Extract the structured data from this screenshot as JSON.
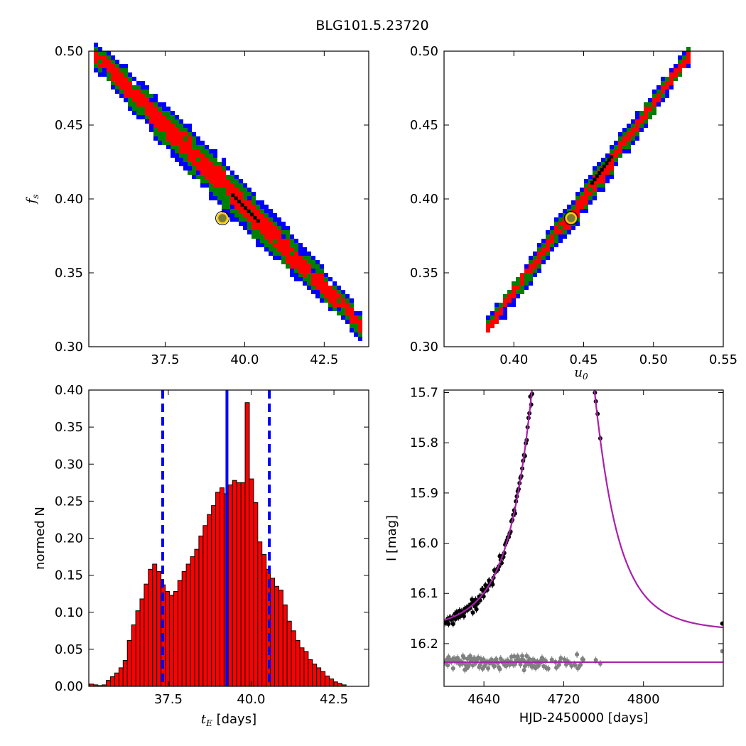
{
  "figure": {
    "title": "BLG101.5.23720"
  },
  "colors": {
    "blue": "#0000ff",
    "green": "#008000",
    "red": "#ff0000",
    "black": "#000000",
    "gray": "#808080",
    "magenta": "#aa20aa",
    "marker_fill": "#7a7a3a",
    "marker_ring": "#ffcc00"
  },
  "chart_data": [
    {
      "id": "fs-vs-tE",
      "type": "heatmap",
      "xlabel": "",
      "ylabel": "f_s",
      "xlim": [
        35.1,
        43.9
      ],
      "ylim": [
        0.3,
        0.5
      ],
      "xticks": [
        "37.5",
        "40.0",
        "42.5"
      ],
      "xtick_values": [
        37.5,
        40.0,
        42.5
      ],
      "yticks": [
        "0.30",
        "0.35",
        "0.40",
        "0.45",
        "0.50"
      ],
      "ytick_values": [
        0.3,
        0.35,
        0.4,
        0.45,
        0.5
      ],
      "band": {
        "x_start": 35.3,
        "y_start": 0.497,
        "x_end": 43.6,
        "y_end": 0.315,
        "widths_y": {
          "blue": 0.016,
          "green": 0.012,
          "red": 0.007
        }
      },
      "best_fit": {
        "x": 39.3,
        "y": 0.387
      }
    },
    {
      "id": "fs-vs-u0",
      "type": "heatmap",
      "xlabel": "u_0",
      "ylabel": "",
      "xlim": [
        0.35,
        0.55
      ],
      "ylim": [
        0.3,
        0.5
      ],
      "xticks": [
        "0.40",
        "0.45",
        "0.50",
        "0.55"
      ],
      "xtick_values": [
        0.4,
        0.45,
        0.5,
        0.55
      ],
      "yticks": [
        "0.30",
        "0.35",
        "0.40",
        "0.45",
        "0.50"
      ],
      "ytick_values": [
        0.3,
        0.35,
        0.4,
        0.45,
        0.5
      ],
      "band": {
        "x_start": 0.381,
        "y_start": 0.315,
        "x_end": 0.525,
        "y_end": 0.499,
        "widths_y": {
          "blue": 0.009,
          "green": 0.006,
          "red": 0.003
        }
      },
      "best_fit": {
        "x": 0.441,
        "y": 0.387
      }
    },
    {
      "id": "tE-histogram",
      "type": "bar",
      "xlabel": "days",
      "xlabel_symbol": "t_E",
      "ylabel": "normed N",
      "xlim": [
        35.1,
        43.55
      ],
      "ylim": [
        0.0,
        0.4
      ],
      "xticks": [
        "37.5",
        "40.0",
        "42.5"
      ],
      "xtick_values": [
        37.5,
        40.0,
        42.5
      ],
      "yticks": [
        "0.00",
        "0.05",
        "0.10",
        "0.15",
        "0.20",
        "0.25",
        "0.30",
        "0.35",
        "0.40"
      ],
      "ytick_values": [
        0.0,
        0.05,
        0.1,
        0.15,
        0.2,
        0.25,
        0.3,
        0.35,
        0.4
      ],
      "bin_start": 35.12,
      "bin_width": 0.127,
      "values": [
        0.003,
        0.002,
        0.001,
        0.002,
        0.008,
        0.013,
        0.018,
        0.025,
        0.035,
        0.062,
        0.083,
        0.102,
        0.118,
        0.138,
        0.158,
        0.165,
        0.155,
        0.137,
        0.128,
        0.123,
        0.128,
        0.143,
        0.155,
        0.165,
        0.175,
        0.185,
        0.203,
        0.217,
        0.232,
        0.244,
        0.262,
        0.268,
        0.26,
        0.272,
        0.278,
        0.275,
        0.275,
        0.383,
        0.28,
        0.248,
        0.195,
        0.178,
        0.158,
        0.146,
        0.135,
        0.13,
        0.11,
        0.088,
        0.075,
        0.062,
        0.052,
        0.047,
        0.036,
        0.03,
        0.025,
        0.02,
        0.014,
        0.01,
        0.006,
        0.004,
        0.002
      ],
      "vlines": [
        {
          "x": 37.33,
          "style": "dashed"
        },
        {
          "x": 39.27,
          "style": "solid"
        },
        {
          "x": 40.55,
          "style": "dashed"
        }
      ]
    },
    {
      "id": "lightcurve",
      "type": "scatter",
      "xlabel": "HJD-2450000 [days]",
      "ylabel": "I [mag]",
      "xlim": [
        4600,
        4880
      ],
      "ylim": [
        16.285,
        15.695
      ],
      "xticks": [
        "4640",
        "4720",
        "4800"
      ],
      "xtick_values": [
        4640,
        4720,
        4800
      ],
      "yticks": [
        "15.7",
        "15.8",
        "15.9",
        "16.0",
        "16.1",
        "16.2"
      ],
      "ytick_values": [
        15.7,
        15.8,
        15.9,
        16.0,
        16.1,
        16.2
      ],
      "model": {
        "t0": 4719.5,
        "tE": 39.3,
        "u0": 0.441,
        "baseline": 16.176
      },
      "residual_offset": 16.237,
      "data_range": [
        4601,
        4757
      ],
      "outliers": [
        {
          "x": 4879,
          "y": 16.16
        },
        {
          "x": 4879,
          "y": 16.215
        }
      ]
    }
  ]
}
